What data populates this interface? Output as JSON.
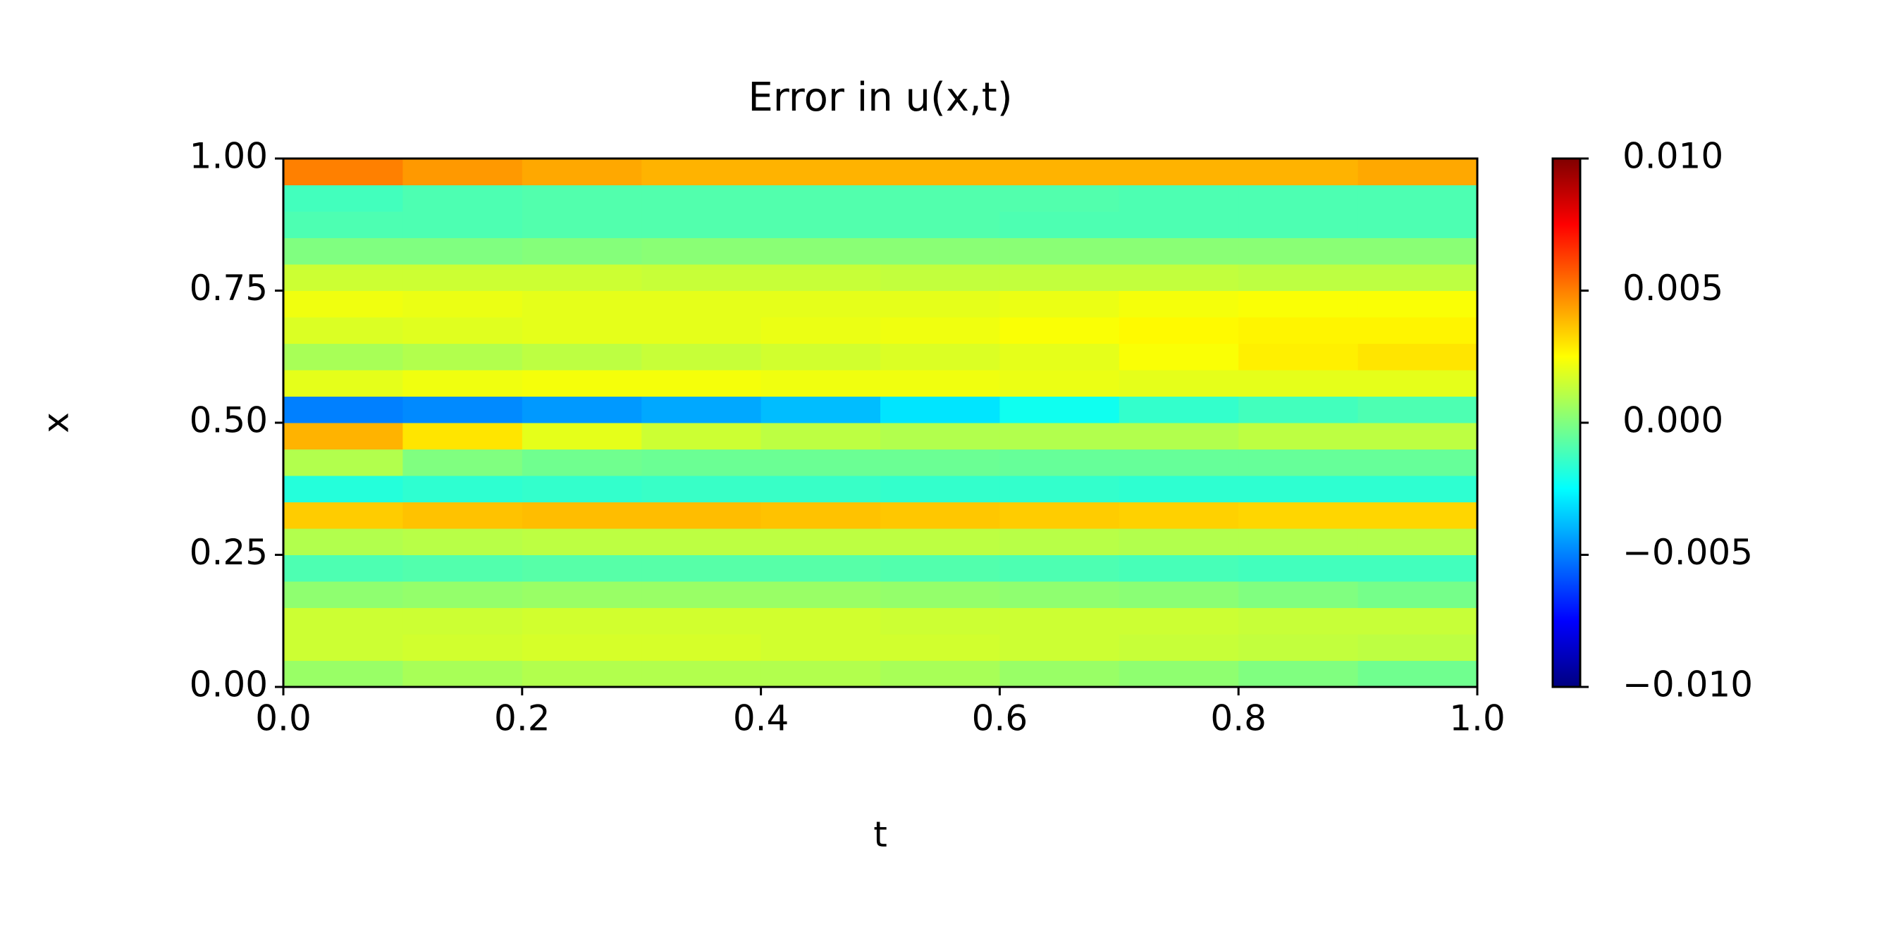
{
  "chart_data": {
    "type": "heatmap",
    "title": "Error in u(x,t)",
    "xlabel": "t",
    "ylabel": "x",
    "colormap": "jet",
    "x": [
      0.05,
      0.15,
      0.25,
      0.35,
      0.45,
      0.55,
      0.65,
      0.75,
      0.85,
      0.95
    ],
    "y": [
      0.025,
      0.075,
      0.125,
      0.175,
      0.225,
      0.275,
      0.325,
      0.375,
      0.425,
      0.475,
      0.525,
      0.575,
      0.625,
      0.675,
      0.725,
      0.775,
      0.825,
      0.875,
      0.925,
      0.975
    ],
    "values": [
      [
        0.0005,
        0.0008,
        0.001,
        0.001,
        0.001,
        0.0008,
        0.0005,
        0.0003,
        0.0,
        -0.0003
      ],
      [
        0.0015,
        0.0016,
        0.0017,
        0.0017,
        0.0016,
        0.0016,
        0.0015,
        0.0014,
        0.0013,
        0.0012
      ],
      [
        0.0015,
        0.0015,
        0.0016,
        0.0016,
        0.0016,
        0.0015,
        0.0015,
        0.0015,
        0.0014,
        0.0014
      ],
      [
        0.0003,
        0.0004,
        0.0005,
        0.0005,
        0.0005,
        0.0004,
        0.0003,
        0.0002,
        0.0,
        -0.0002
      ],
      [
        -0.001,
        -0.0009,
        -0.0008,
        -0.0008,
        -0.0008,
        -0.0009,
        -0.001,
        -0.0011,
        -0.0012,
        -0.0012
      ],
      [
        0.001,
        0.0011,
        0.0012,
        0.0012,
        0.0012,
        0.0012,
        0.0011,
        0.001,
        0.001,
        0.001
      ],
      [
        0.0035,
        0.0037,
        0.0038,
        0.0038,
        0.0037,
        0.0036,
        0.0035,
        0.0034,
        0.0033,
        0.0033
      ],
      [
        -0.0018,
        -0.0016,
        -0.0015,
        -0.0014,
        -0.0014,
        -0.0015,
        -0.0015,
        -0.0016,
        -0.0016,
        -0.0016
      ],
      [
        0.001,
        0.0,
        -0.0003,
        -0.0004,
        -0.0004,
        -0.0004,
        -0.0005,
        -0.0005,
        -0.0005,
        -0.0005
      ],
      [
        0.004,
        0.003,
        0.002,
        0.0015,
        0.0012,
        0.001,
        0.001,
        0.001,
        0.0012,
        0.0012
      ],
      [
        -0.005,
        -0.0048,
        -0.0045,
        -0.0042,
        -0.0038,
        -0.003,
        -0.0022,
        -0.0015,
        -0.0012,
        -0.001
      ],
      [
        0.002,
        0.0022,
        0.0023,
        0.0023,
        0.0022,
        0.0022,
        0.0021,
        0.002,
        0.002,
        0.002
      ],
      [
        0.0008,
        0.001,
        0.0012,
        0.0014,
        0.0016,
        0.0018,
        0.002,
        0.0024,
        0.0028,
        0.003
      ],
      [
        0.0018,
        0.0019,
        0.002,
        0.002,
        0.0021,
        0.0022,
        0.0024,
        0.0026,
        0.0027,
        0.0027
      ],
      [
        0.0022,
        0.0021,
        0.002,
        0.002,
        0.002,
        0.002,
        0.0021,
        0.0023,
        0.0024,
        0.0024
      ],
      [
        0.0015,
        0.0015,
        0.0015,
        0.0014,
        0.0014,
        0.0013,
        0.0013,
        0.0013,
        0.0012,
        0.0012
      ],
      [
        0.0,
        0.0,
        0.0001,
        0.0002,
        0.0002,
        0.0002,
        0.0002,
        0.0002,
        0.0002,
        0.0002
      ],
      [
        -0.001,
        -0.001,
        -0.0009,
        -0.0009,
        -0.0009,
        -0.0009,
        -0.001,
        -0.001,
        -0.001,
        -0.001
      ],
      [
        -0.0012,
        -0.001,
        -0.0009,
        -0.0009,
        -0.0009,
        -0.0009,
        -0.0009,
        -0.001,
        -0.001,
        -0.001
      ],
      [
        0.005,
        0.0045,
        0.0042,
        0.004,
        0.004,
        0.004,
        0.004,
        0.004,
        0.004,
        0.0042
      ]
    ],
    "xlim": [
      0,
      1
    ],
    "ylim": [
      0,
      1
    ],
    "xticks": [
      {
        "value": 0,
        "label": "0.0"
      },
      {
        "value": 0.2,
        "label": "0.2"
      },
      {
        "value": 0.4,
        "label": "0.4"
      },
      {
        "value": 0.6,
        "label": "0.6"
      },
      {
        "value": 0.8,
        "label": "0.8"
      },
      {
        "value": 1,
        "label": "1.0"
      }
    ],
    "yticks": [
      {
        "value": 0,
        "label": "0.00"
      },
      {
        "value": 0.25,
        "label": "0.25"
      },
      {
        "value": 0.5,
        "label": "0.50"
      },
      {
        "value": 0.75,
        "label": "0.75"
      },
      {
        "value": 1,
        "label": "1.00"
      }
    ],
    "clim": [
      -0.01,
      0.01
    ],
    "cticks": [
      {
        "value": -0.01,
        "label": "−0.010"
      },
      {
        "value": -0.005,
        "label": "−0.005"
      },
      {
        "value": 0,
        "label": "0.000"
      },
      {
        "value": 0.005,
        "label": "0.005"
      },
      {
        "value": 0.01,
        "label": "0.010"
      }
    ]
  }
}
